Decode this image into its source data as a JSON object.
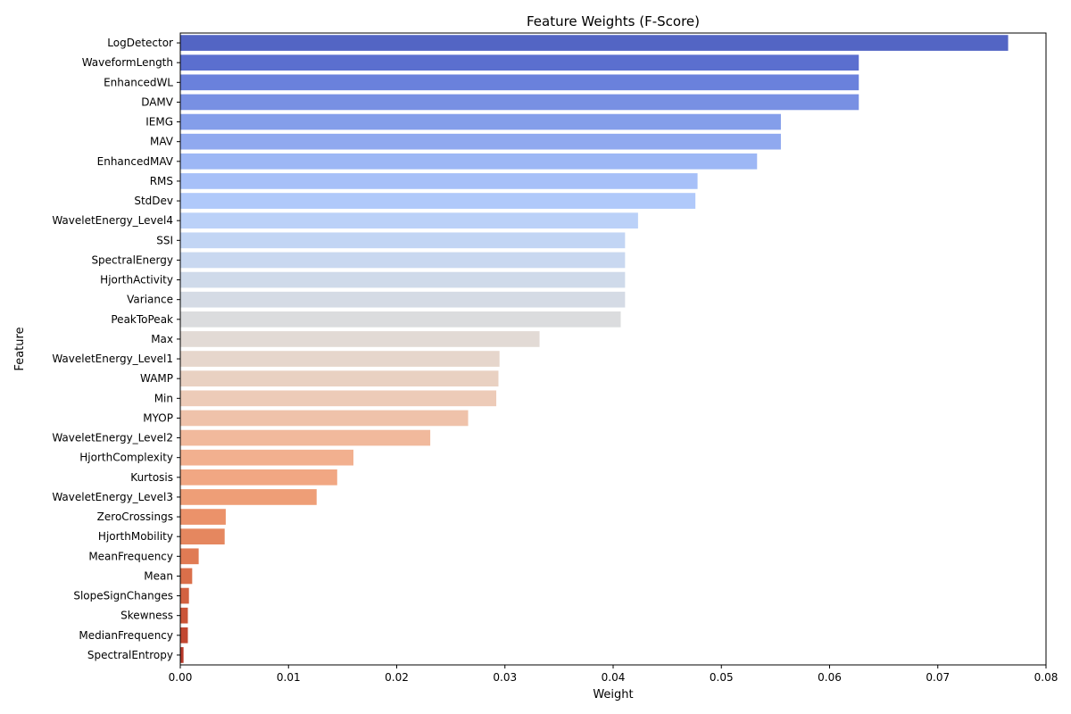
{
  "chart_data": {
    "type": "bar",
    "orientation": "horizontal",
    "title": "Feature Weights (F-Score)",
    "xlabel": "Weight",
    "ylabel": "Feature",
    "xlim": [
      0,
      0.08
    ],
    "xticks": [
      0.0,
      0.01,
      0.02,
      0.03,
      0.04,
      0.05,
      0.06,
      0.07,
      0.08
    ],
    "xtick_labels": [
      "0.00",
      "0.01",
      "0.02",
      "0.03",
      "0.04",
      "0.05",
      "0.06",
      "0.07",
      "0.08"
    ],
    "grid": false,
    "colormap": "coolwarm",
    "categories": [
      "LogDetector",
      "WaveformLength",
      "EnhancedWL",
      "DAMV",
      "IEMG",
      "MAV",
      "EnhancedMAV",
      "RMS",
      "StdDev",
      "WaveletEnergy_Level4",
      "SSI",
      "SpectralEnergy",
      "HjorthActivity",
      "Variance",
      "PeakToPeak",
      "Max",
      "WaveletEnergy_Level1",
      "WAMP",
      "Min",
      "MYOP",
      "WaveletEnergy_Level2",
      "HjorthComplexity",
      "Kurtosis",
      "WaveletEnergy_Level3",
      "ZeroCrossings",
      "HjorthMobility",
      "MeanFrequency",
      "Mean",
      "SlopeSignChanges",
      "Skewness",
      "MedianFrequency",
      "SpectralEntropy"
    ],
    "values": [
      0.0765,
      0.0627,
      0.0627,
      0.0627,
      0.0555,
      0.0555,
      0.0533,
      0.0478,
      0.0476,
      0.0423,
      0.0411,
      0.0411,
      0.0411,
      0.0411,
      0.0407,
      0.0332,
      0.0295,
      0.0294,
      0.0292,
      0.0266,
      0.0231,
      0.016,
      0.0145,
      0.0126,
      0.0042,
      0.0041,
      0.0017,
      0.0011,
      0.0008,
      0.0007,
      0.0007,
      0.0003
    ],
    "colors": [
      "#5365c4",
      "#5b6fcf",
      "#6a81dc",
      "#7890e3",
      "#849eea",
      "#90a9ef",
      "#9db7f5",
      "#a7c0f8",
      "#b0c9fa",
      "#bbd1f8",
      "#c2d5f4",
      "#c9d8f0",
      "#cfdaea",
      "#d5dbe5",
      "#dbdcde",
      "#e2dad5",
      "#e6d6cc",
      "#e9d1c2",
      "#edcbb8",
      "#efc2aa",
      "#f1b99c",
      "#f2b08f",
      "#f1a783",
      "#ee9e77",
      "#eb926a",
      "#e5875f",
      "#e07b54",
      "#da6f4a",
      "#d36241",
      "#cb5538",
      "#c24731",
      "#b83a2a"
    ]
  }
}
